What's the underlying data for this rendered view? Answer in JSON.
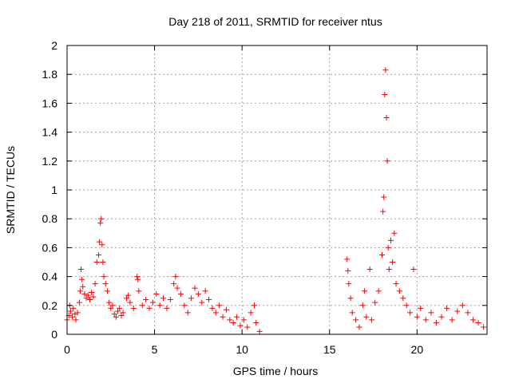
{
  "chart_data": {
    "type": "scatter",
    "title": "Day 218 of 2011, SRMTID for receiver ntus",
    "xlabel": "GPS time / hours",
    "ylabel": "SRMTID / TECUs",
    "xlim": [
      0,
      24
    ],
    "ylim": [
      0,
      2
    ],
    "xticks": [
      0,
      5,
      10,
      15,
      20
    ],
    "yticks": [
      0,
      0.2,
      0.4,
      0.6,
      0.8,
      1,
      1.2,
      1.4,
      1.6,
      1.8,
      2
    ],
    "ytick_labels": [
      "0",
      "0.2",
      "0.4",
      "0.6",
      "0.8",
      "1",
      "1.2",
      "1.4",
      "1.6",
      "1.8",
      "2"
    ],
    "grid": true,
    "marker": "plus",
    "series": [
      {
        "name": "SRMTID",
        "color": "#ff0000",
        "points": [
          [
            0.0,
            0.1
          ],
          [
            0.1,
            0.13
          ],
          [
            0.15,
            0.2
          ],
          [
            0.2,
            0.16
          ],
          [
            0.3,
            0.12
          ],
          [
            0.35,
            0.18
          ],
          [
            0.45,
            0.14
          ],
          [
            0.5,
            0.1
          ],
          [
            0.6,
            0.15
          ],
          [
            0.7,
            0.22
          ],
          [
            0.75,
            0.3
          ],
          [
            0.8,
            0.45
          ],
          [
            0.85,
            0.38
          ],
          [
            0.9,
            0.33
          ],
          [
            1.0,
            0.28
          ],
          [
            1.1,
            0.25
          ],
          [
            1.2,
            0.27
          ],
          [
            1.3,
            0.24
          ],
          [
            1.4,
            0.29
          ],
          [
            1.5,
            0.26
          ],
          [
            1.6,
            0.35
          ],
          [
            1.7,
            0.5
          ],
          [
            1.8,
            0.55
          ],
          [
            1.85,
            0.64
          ],
          [
            1.9,
            0.77
          ],
          [
            1.95,
            0.8
          ],
          [
            2.0,
            0.62
          ],
          [
            2.05,
            0.5
          ],
          [
            2.1,
            0.4
          ],
          [
            2.2,
            0.35
          ],
          [
            2.3,
            0.3
          ],
          [
            2.4,
            0.22
          ],
          [
            2.5,
            0.18
          ],
          [
            2.6,
            0.2
          ],
          [
            2.7,
            0.14
          ],
          [
            2.8,
            0.12
          ],
          [
            2.9,
            0.16
          ],
          [
            3.0,
            0.18
          ],
          [
            3.1,
            0.13
          ],
          [
            3.2,
            0.15
          ],
          [
            3.4,
            0.25
          ],
          [
            3.5,
            0.27
          ],
          [
            3.6,
            0.22
          ],
          [
            3.8,
            0.18
          ],
          [
            4.0,
            0.4
          ],
          [
            4.05,
            0.38
          ],
          [
            4.1,
            0.3
          ],
          [
            4.3,
            0.2
          ],
          [
            4.5,
            0.24
          ],
          [
            4.7,
            0.18
          ],
          [
            4.9,
            0.22
          ],
          [
            5.1,
            0.28
          ],
          [
            5.3,
            0.2
          ],
          [
            5.5,
            0.25
          ],
          [
            5.7,
            0.18
          ],
          [
            5.9,
            0.24
          ],
          [
            6.1,
            0.35
          ],
          [
            6.2,
            0.4
          ],
          [
            6.3,
            0.32
          ],
          [
            6.5,
            0.28
          ],
          [
            6.7,
            0.2
          ],
          [
            6.9,
            0.15
          ],
          [
            7.1,
            0.25
          ],
          [
            7.3,
            0.32
          ],
          [
            7.5,
            0.28
          ],
          [
            7.7,
            0.22
          ],
          [
            7.9,
            0.3
          ],
          [
            8.1,
            0.24
          ],
          [
            8.3,
            0.18
          ],
          [
            8.5,
            0.15
          ],
          [
            8.7,
            0.2
          ],
          [
            8.9,
            0.12
          ],
          [
            9.1,
            0.17
          ],
          [
            9.3,
            0.1
          ],
          [
            9.5,
            0.08
          ],
          [
            9.7,
            0.12
          ],
          [
            9.9,
            0.06
          ],
          [
            10.1,
            0.1
          ],
          [
            10.3,
            0.05
          ],
          [
            10.5,
            0.15
          ],
          [
            10.7,
            0.2
          ],
          [
            10.8,
            0.08
          ],
          [
            11.0,
            0.02
          ],
          [
            16.0,
            0.52
          ],
          [
            16.05,
            0.44
          ],
          [
            16.1,
            0.35
          ],
          [
            16.2,
            0.25
          ],
          [
            16.3,
            0.15
          ],
          [
            16.5,
            0.1
          ],
          [
            16.7,
            0.05
          ],
          [
            16.9,
            0.2
          ],
          [
            17.0,
            0.3
          ],
          [
            17.1,
            0.12
          ],
          [
            17.3,
            0.45
          ],
          [
            17.4,
            0.1
          ],
          [
            17.6,
            0.22
          ],
          [
            17.8,
            0.3
          ],
          [
            18.0,
            0.55
          ],
          [
            18.05,
            0.85
          ],
          [
            18.1,
            0.95
          ],
          [
            18.15,
            1.66
          ],
          [
            18.2,
            1.83
          ],
          [
            18.25,
            1.5
          ],
          [
            18.3,
            1.2
          ],
          [
            18.35,
            0.6
          ],
          [
            18.4,
            0.45
          ],
          [
            18.5,
            0.65
          ],
          [
            18.6,
            0.5
          ],
          [
            18.7,
            0.7
          ],
          [
            18.8,
            0.35
          ],
          [
            19.0,
            0.3
          ],
          [
            19.2,
            0.25
          ],
          [
            19.4,
            0.2
          ],
          [
            19.6,
            0.15
          ],
          [
            19.8,
            0.45
          ],
          [
            20.0,
            0.12
          ],
          [
            20.2,
            0.18
          ],
          [
            20.5,
            0.1
          ],
          [
            20.8,
            0.15
          ],
          [
            21.1,
            0.08
          ],
          [
            21.4,
            0.12
          ],
          [
            21.7,
            0.18
          ],
          [
            22.0,
            0.1
          ],
          [
            22.3,
            0.16
          ],
          [
            22.6,
            0.2
          ],
          [
            22.9,
            0.15
          ],
          [
            23.2,
            0.1
          ],
          [
            23.5,
            0.08
          ],
          [
            23.8,
            0.05
          ]
        ]
      }
    ]
  }
}
